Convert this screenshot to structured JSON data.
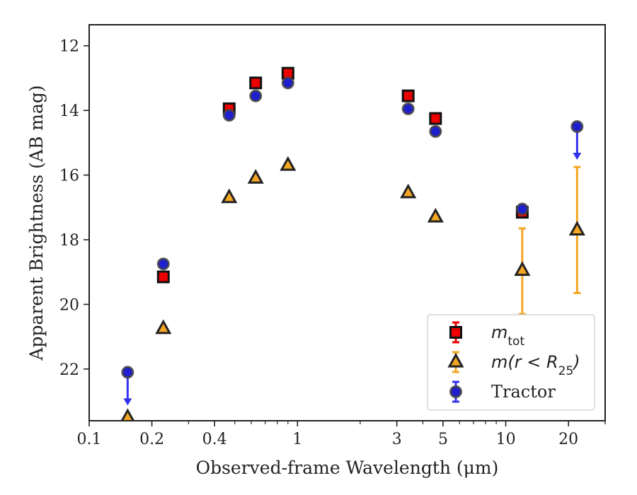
{
  "chart_data": {
    "type": "scatter",
    "xlabel": "Observed-frame Wavelength (μm)",
    "ylabel": "Apparent Brightness (AB mag)",
    "x_scale": "log",
    "xlim": [
      0.1,
      30
    ],
    "ylim": [
      23.6,
      11.35
    ],
    "y_inverted": true,
    "x_ticks": [
      {
        "value": 0.1,
        "label": "0.1"
      },
      {
        "value": 0.2,
        "label": "0.2"
      },
      {
        "value": 0.4,
        "label": "0.4"
      },
      {
        "value": 1,
        "label": "1"
      },
      {
        "value": 3,
        "label": "3"
      },
      {
        "value": 5,
        "label": "5"
      },
      {
        "value": 10,
        "label": "10"
      },
      {
        "value": 20,
        "label": "20"
      }
    ],
    "y_ticks": [
      {
        "value": 12,
        "label": "12"
      },
      {
        "value": 14,
        "label": "14"
      },
      {
        "value": 16,
        "label": "16"
      },
      {
        "value": 18,
        "label": "18"
      },
      {
        "value": 20,
        "label": "20"
      },
      {
        "value": 22,
        "label": "22"
      }
    ],
    "grid": false,
    "legend_position": "lower-right",
    "legend": [
      {
        "series": "m_tot",
        "label_main": "m",
        "label_sub": "tot",
        "marker": "square",
        "color": "#ee0000"
      },
      {
        "series": "m_r25",
        "label_main": "m(r < R",
        "label_sub": "25",
        "label_tail": ")",
        "marker": "triangle",
        "color": "#f5a623"
      },
      {
        "series": "tractor",
        "label_main": "Tractor",
        "marker": "circle",
        "color": "#1f1fd0"
      }
    ],
    "series": [
      {
        "key": "m_tot",
        "marker": "square",
        "color": "#ee0000",
        "errorbar_color": "#ee0000",
        "points": [
          {
            "x": 0.227,
            "y": 19.15
          },
          {
            "x": 0.47,
            "y": 13.95
          },
          {
            "x": 0.63,
            "y": 13.15
          },
          {
            "x": 0.9,
            "y": 12.85
          },
          {
            "x": 3.4,
            "y": 13.55
          },
          {
            "x": 4.6,
            "y": 14.25
          },
          {
            "x": 12.0,
            "y": 17.15
          }
        ]
      },
      {
        "key": "m_r25",
        "marker": "triangle",
        "color": "#f5a623",
        "errorbar_color": "#f5a623",
        "points": [
          {
            "x": 0.153,
            "y": 23.5
          },
          {
            "x": 0.227,
            "y": 20.75
          },
          {
            "x": 0.47,
            "y": 16.7
          },
          {
            "x": 0.63,
            "y": 16.1
          },
          {
            "x": 0.9,
            "y": 15.7
          },
          {
            "x": 3.4,
            "y": 16.55
          },
          {
            "x": 4.6,
            "y": 17.3
          },
          {
            "x": 12.0,
            "y": 18.95,
            "err_low": 17.65,
            "err_high": 20.3
          },
          {
            "x": 22.0,
            "y": 17.7,
            "err_low": 15.75,
            "err_high": 19.65
          }
        ]
      },
      {
        "key": "tractor",
        "marker": "circle",
        "color": "#1f1fd0",
        "errorbar_color": "#3333ee",
        "points": [
          {
            "x": 0.153,
            "y": 22.1,
            "upper_limit": true
          },
          {
            "x": 0.227,
            "y": 18.75
          },
          {
            "x": 0.47,
            "y": 14.15
          },
          {
            "x": 0.63,
            "y": 13.55
          },
          {
            "x": 0.9,
            "y": 13.15
          },
          {
            "x": 3.4,
            "y": 13.95
          },
          {
            "x": 4.6,
            "y": 14.65
          },
          {
            "x": 12.0,
            "y": 17.05
          },
          {
            "x": 22.0,
            "y": 14.5,
            "upper_limit": true
          }
        ]
      }
    ]
  }
}
